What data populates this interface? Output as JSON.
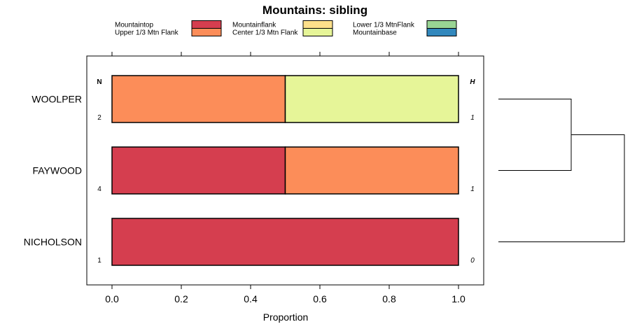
{
  "chart_data": {
    "type": "bar",
    "orientation": "horizontal",
    "stacked": true,
    "title": "Mountains: sibling",
    "xlabel": "Proportion",
    "xlim": [
      -0.07,
      1.07
    ],
    "xticks": [
      "0.0",
      "0.2",
      "0.4",
      "0.6",
      "0.8",
      "1.0"
    ],
    "xtick_values": [
      0,
      0.2,
      0.4,
      0.6,
      0.8,
      1.0
    ],
    "categories": [
      "WOOLPER",
      "FAYWOOD",
      "NICHOLSON"
    ],
    "legend": [
      {
        "name": "Mountaintop",
        "color": "#d53e4f"
      },
      {
        "name": "Upper 1/3 Mtn Flank",
        "color": "#fc8d59"
      },
      {
        "name": "Mountainflank",
        "color": "#fee08b"
      },
      {
        "name": "Center 1/3 Mtn Flank",
        "color": "#e6f598"
      },
      {
        "name": "Lower 1/3 MtnFlank",
        "color": "#99d594"
      },
      {
        "name": "Mountainbase",
        "color": "#3288bd"
      }
    ],
    "series": [
      {
        "name": "Mountaintop",
        "values": [
          0,
          0.5,
          1.0
        ]
      },
      {
        "name": "Upper 1/3 Mtn Flank",
        "values": [
          0.5,
          0.5,
          0
        ]
      },
      {
        "name": "Mountainflank",
        "values": [
          0,
          0,
          0
        ]
      },
      {
        "name": "Center 1/3 Mtn Flank",
        "values": [
          0.5,
          0,
          0
        ]
      },
      {
        "name": "Lower 1/3 MtnFlank",
        "values": [
          0,
          0,
          0
        ]
      },
      {
        "name": "Mountainbase",
        "values": [
          0,
          0,
          0
        ]
      }
    ],
    "left_column_header": "N",
    "right_column_header": "H",
    "n_values": [
      "2",
      "4",
      "1"
    ],
    "h_values": [
      "1",
      "1",
      "0"
    ],
    "dendrogram": {
      "merges": [
        {
          "left": "WOOLPER",
          "right": "FAYWOOD"
        },
        {
          "left": "WOOLPER+FAYWOOD",
          "right": "NICHOLSON"
        }
      ]
    }
  }
}
